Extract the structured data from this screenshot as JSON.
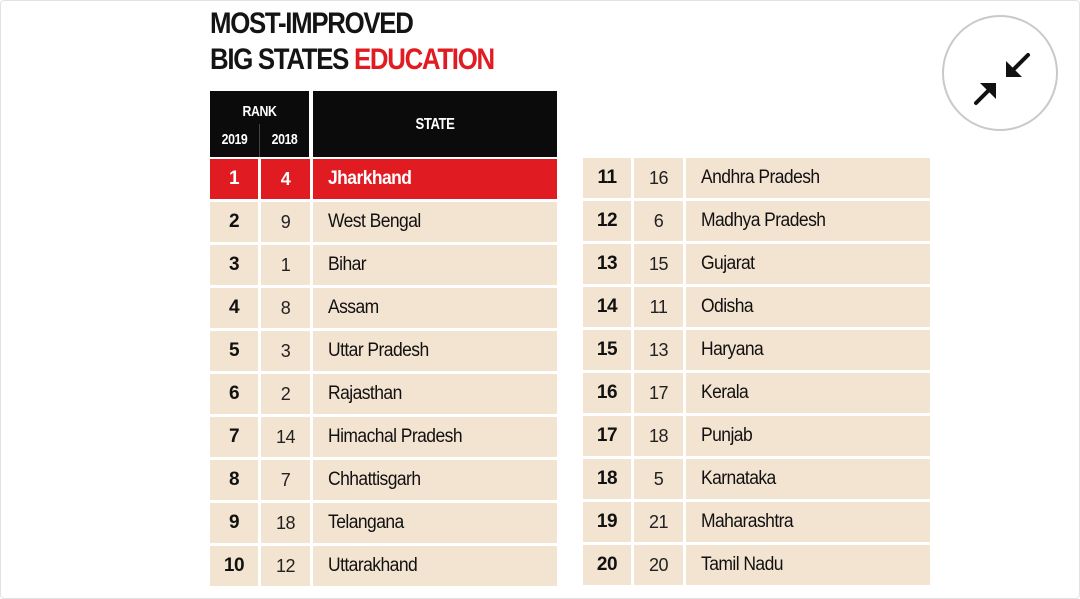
{
  "title": {
    "line1": "MOST-IMPROVED",
    "line2_prefix": "BIG STATES ",
    "line2_accent": "EDUCATION"
  },
  "header": {
    "rank": "RANK",
    "year_2019": "2019",
    "year_2018": "2018",
    "state": "STATE"
  },
  "colors": {
    "accent": "#e01b22",
    "header_bg": "#0b0b0b",
    "row_bg": "#f3e3d1"
  },
  "collapse_button": {
    "icon": "collapse-arrows-icon"
  },
  "left_rows": [
    {
      "rank_2019": "1",
      "rank_2018": "4",
      "state": "Jharkhand",
      "highlight": true
    },
    {
      "rank_2019": "2",
      "rank_2018": "9",
      "state": "West Bengal"
    },
    {
      "rank_2019": "3",
      "rank_2018": "1",
      "state": "Bihar"
    },
    {
      "rank_2019": "4",
      "rank_2018": "8",
      "state": "Assam"
    },
    {
      "rank_2019": "5",
      "rank_2018": "3",
      "state": "Uttar Pradesh"
    },
    {
      "rank_2019": "6",
      "rank_2018": "2",
      "state": "Rajasthan"
    },
    {
      "rank_2019": "7",
      "rank_2018": "14",
      "state": "Himachal Pradesh"
    },
    {
      "rank_2019": "8",
      "rank_2018": "7",
      "state": "Chhattisgarh"
    },
    {
      "rank_2019": "9",
      "rank_2018": "18",
      "state": "Telangana"
    },
    {
      "rank_2019": "10",
      "rank_2018": "12",
      "state": "Uttarakhand"
    }
  ],
  "right_rows": [
    {
      "rank_2019": "11",
      "rank_2018": "16",
      "state": "Andhra Pradesh"
    },
    {
      "rank_2019": "12",
      "rank_2018": "6",
      "state": "Madhya Pradesh"
    },
    {
      "rank_2019": "13",
      "rank_2018": "15",
      "state": "Gujarat"
    },
    {
      "rank_2019": "14",
      "rank_2018": "11",
      "state": "Odisha"
    },
    {
      "rank_2019": "15",
      "rank_2018": "13",
      "state": "Haryana"
    },
    {
      "rank_2019": "16",
      "rank_2018": "17",
      "state": "Kerala"
    },
    {
      "rank_2019": "17",
      "rank_2018": "18",
      "state": "Punjab"
    },
    {
      "rank_2019": "18",
      "rank_2018": "5",
      "state": "Karnataka"
    },
    {
      "rank_2019": "19",
      "rank_2018": "21",
      "state": "Maharashtra"
    },
    {
      "rank_2019": "20",
      "rank_2018": "20",
      "state": "Tamil Nadu"
    }
  ]
}
